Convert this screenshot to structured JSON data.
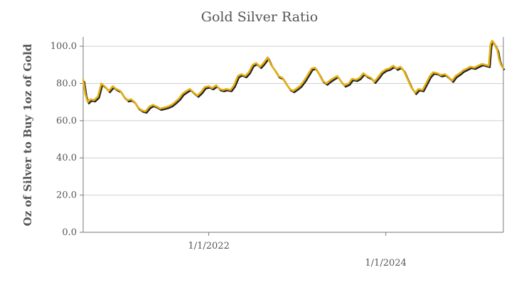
{
  "chart_data": {
    "type": "line",
    "title": "Gold Silver Ratio",
    "ylabel": "Oz of Silver to Buy 1oz of Gold",
    "xlabel": "",
    "ylim": [
      0,
      105
    ],
    "xlim": [
      "2020-08-01",
      "2025-04-30"
    ],
    "grid": true,
    "legend": "none",
    "y_ticks": [
      "0.0",
      "20.0",
      "40.0",
      "60.0",
      "80.0",
      "100.0"
    ],
    "x_ticks": [
      {
        "date": "2022-01-01",
        "label": "1/1/2022"
      },
      {
        "date": "2024-01-01",
        "label": "1/1/2024"
      }
    ],
    "series": [
      {
        "color": "#e6b012",
        "shadow_color": "#222222",
        "points": [
          [
            "2020-08-01",
            82.0
          ],
          [
            "2020-08-10",
            74.0
          ],
          [
            "2020-08-20",
            70.0
          ],
          [
            "2020-09-01",
            71.5
          ],
          [
            "2020-09-15",
            71.0
          ],
          [
            "2020-10-01",
            73.0
          ],
          [
            "2020-10-15",
            80.0
          ],
          [
            "2020-11-01",
            78.0
          ],
          [
            "2020-11-15",
            76.0
          ],
          [
            "2020-12-01",
            78.5
          ],
          [
            "2020-12-15",
            77.0
          ],
          [
            "2021-01-01",
            76.0
          ],
          [
            "2021-01-15",
            73.0
          ],
          [
            "2021-02-01",
            71.0
          ],
          [
            "2021-02-15",
            71.5
          ],
          [
            "2021-03-01",
            70.0
          ],
          [
            "2021-03-15",
            67.0
          ],
          [
            "2021-04-01",
            65.5
          ],
          [
            "2021-04-15",
            65.0
          ],
          [
            "2021-05-01",
            67.5
          ],
          [
            "2021-05-15",
            68.5
          ],
          [
            "2021-06-01",
            67.5
          ],
          [
            "2021-06-15",
            66.5
          ],
          [
            "2021-07-01",
            67.0
          ],
          [
            "2021-07-15",
            67.5
          ],
          [
            "2021-08-01",
            68.5
          ],
          [
            "2021-08-15",
            70.0
          ],
          [
            "2021-09-01",
            72.0
          ],
          [
            "2021-09-15",
            74.5
          ],
          [
            "2021-10-01",
            76.0
          ],
          [
            "2021-10-15",
            77.0
          ],
          [
            "2021-11-01",
            75.0
          ],
          [
            "2021-11-15",
            73.5
          ],
          [
            "2021-12-01",
            75.5
          ],
          [
            "2021-12-15",
            78.0
          ],
          [
            "2022-01-01",
            78.5
          ],
          [
            "2022-01-15",
            77.5
          ],
          [
            "2022-02-01",
            79.0
          ],
          [
            "2022-02-15",
            77.0
          ],
          [
            "2022-03-01",
            76.5
          ],
          [
            "2022-03-15",
            77.0
          ],
          [
            "2022-04-01",
            76.5
          ],
          [
            "2022-04-15",
            79.0
          ],
          [
            "2022-05-01",
            84.0
          ],
          [
            "2022-05-15",
            85.0
          ],
          [
            "2022-06-01",
            84.0
          ],
          [
            "2022-06-15",
            86.0
          ],
          [
            "2022-07-01",
            90.0
          ],
          [
            "2022-07-15",
            91.0
          ],
          [
            "2022-08-01",
            89.0
          ],
          [
            "2022-08-15",
            91.0
          ],
          [
            "2022-09-01",
            94.0
          ],
          [
            "2022-09-15",
            90.0
          ],
          [
            "2022-10-01",
            87.0
          ],
          [
            "2022-10-15",
            84.0
          ],
          [
            "2022-11-01",
            83.0
          ],
          [
            "2022-11-15",
            80.0
          ],
          [
            "2022-12-01",
            77.0
          ],
          [
            "2022-12-15",
            76.0
          ],
          [
            "2023-01-01",
            77.5
          ],
          [
            "2023-01-15",
            79.0
          ],
          [
            "2023-02-01",
            82.0
          ],
          [
            "2023-02-15",
            85.0
          ],
          [
            "2023-03-01",
            88.0
          ],
          [
            "2023-03-15",
            88.5
          ],
          [
            "2023-04-01",
            85.0
          ],
          [
            "2023-04-15",
            81.5
          ],
          [
            "2023-05-01",
            80.0
          ],
          [
            "2023-05-15",
            81.5
          ],
          [
            "2023-06-01",
            83.0
          ],
          [
            "2023-06-15",
            84.0
          ],
          [
            "2023-07-01",
            81.0
          ],
          [
            "2023-07-15",
            79.0
          ],
          [
            "2023-08-01",
            80.0
          ],
          [
            "2023-08-15",
            82.5
          ],
          [
            "2023-09-01",
            82.0
          ],
          [
            "2023-09-15",
            83.0
          ],
          [
            "2023-10-01",
            85.5
          ],
          [
            "2023-10-15",
            84.0
          ],
          [
            "2023-11-01",
            83.0
          ],
          [
            "2023-11-15",
            81.0
          ],
          [
            "2023-12-01",
            83.5
          ],
          [
            "2023-12-15",
            86.0
          ],
          [
            "2024-01-01",
            87.5
          ],
          [
            "2024-01-15",
            88.0
          ],
          [
            "2024-02-01",
            89.5
          ],
          [
            "2024-02-15",
            88.0
          ],
          [
            "2024-03-01",
            89.0
          ],
          [
            "2024-03-15",
            87.0
          ],
          [
            "2024-04-01",
            82.0
          ],
          [
            "2024-04-15",
            78.0
          ],
          [
            "2024-05-01",
            75.0
          ],
          [
            "2024-05-15",
            77.0
          ],
          [
            "2024-06-01",
            76.5
          ],
          [
            "2024-06-15",
            80.0
          ],
          [
            "2024-07-01",
            84.0
          ],
          [
            "2024-07-15",
            86.0
          ],
          [
            "2024-08-01",
            85.5
          ],
          [
            "2024-08-15",
            84.5
          ],
          [
            "2024-09-01",
            85.0
          ],
          [
            "2024-09-15",
            83.5
          ],
          [
            "2024-10-01",
            81.5
          ],
          [
            "2024-10-15",
            84.0
          ],
          [
            "2024-11-01",
            85.5
          ],
          [
            "2024-11-15",
            87.0
          ],
          [
            "2024-12-01",
            88.0
          ],
          [
            "2024-12-15",
            89.0
          ],
          [
            "2025-01-01",
            88.5
          ],
          [
            "2025-01-15",
            89.5
          ],
          [
            "2025-02-01",
            90.5
          ],
          [
            "2025-02-15",
            90.0
          ],
          [
            "2025-03-01",
            89.5
          ],
          [
            "2025-03-08",
            101.0
          ],
          [
            "2025-03-15",
            103.0
          ],
          [
            "2025-03-25",
            101.0
          ],
          [
            "2025-04-05",
            98.0
          ],
          [
            "2025-04-12",
            93.0
          ],
          [
            "2025-04-20",
            90.0
          ],
          [
            "2025-04-30",
            88.0
          ]
        ]
      }
    ]
  }
}
